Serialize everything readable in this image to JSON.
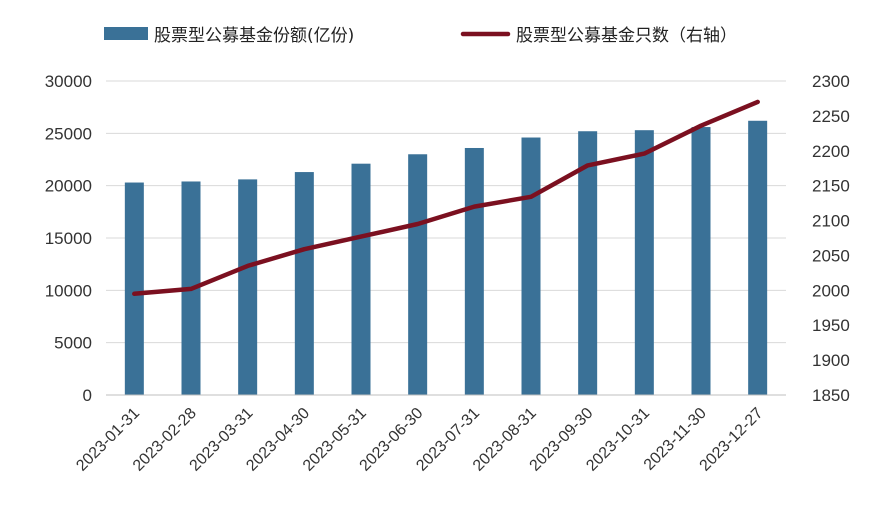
{
  "chart_data": {
    "type": "bar",
    "categories": [
      "2023-01-31",
      "2023-02-28",
      "2023-03-31",
      "2023-04-30",
      "2023-05-31",
      "2023-06-30",
      "2023-07-31",
      "2023-08-31",
      "2023-09-30",
      "2023-10-31",
      "2023-11-30",
      "2023-12-27"
    ],
    "series": [
      {
        "name": "股票型公募基金份额(亿份)",
        "type": "bar",
        "axis": "left",
        "color": "#3a7197",
        "values": [
          20300,
          20400,
          20600,
          21300,
          22100,
          23000,
          23600,
          24600,
          25200,
          25300,
          25600,
          26200
        ]
      },
      {
        "name": "股票型公募基金只数（右轴）",
        "type": "line",
        "axis": "right",
        "color": "#7b1020",
        "values": [
          1995,
          2002,
          2035,
          2059,
          2077,
          2095,
          2120,
          2134,
          2179,
          2196,
          2236,
          2270
        ]
      }
    ],
    "y_left": {
      "ylim": [
        0,
        30000
      ],
      "ticks": [
        "0",
        "5000",
        "10000",
        "15000",
        "20000",
        "25000",
        "30000"
      ]
    },
    "y_right": {
      "ylim": [
        1850,
        2300
      ],
      "ticks": [
        "1850",
        "1900",
        "1950",
        "2000",
        "2050",
        "2100",
        "2150",
        "2200",
        "2250",
        "2300"
      ]
    },
    "grid": true,
    "legend_position": "top"
  }
}
